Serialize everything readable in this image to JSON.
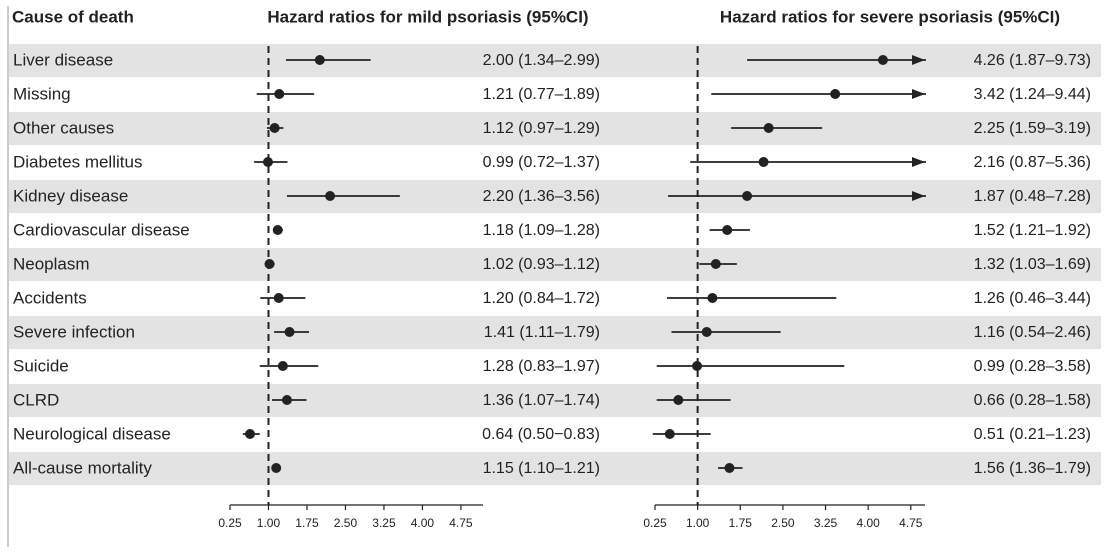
{
  "chart_data": {
    "type": "forest",
    "category_header": "Cause of death",
    "categories": [
      "Liver disease",
      "Missing",
      "Other causes",
      "Diabetes mellitus",
      "Kidney disease",
      "Cardiovascular disease",
      "Neoplasm",
      "Accidents",
      "Severe infection",
      "Suicide",
      "CLRD",
      "Neurological disease",
      "All-cause mortality"
    ],
    "stripe_color": "#e3e3e3",
    "color": "#222222",
    "panels": [
      {
        "title": "Hazard ratios for mild psoriasis (95%CI)",
        "values": [
          2.0,
          1.21,
          1.12,
          0.99,
          2.2,
          1.18,
          1.02,
          1.2,
          1.41,
          1.28,
          1.36,
          0.64,
          1.15
        ],
        "lower": [
          1.34,
          0.77,
          0.97,
          0.72,
          1.36,
          1.09,
          0.93,
          0.84,
          1.11,
          0.83,
          1.07,
          0.5,
          1.1
        ],
        "upper": [
          2.99,
          1.89,
          1.29,
          1.37,
          3.56,
          1.28,
          1.12,
          1.72,
          1.79,
          1.97,
          1.74,
          0.83,
          1.21
        ],
        "value_labels": [
          "2.00 (1.34–2.99)",
          "1.21 (0.77–1.89)",
          "1.12 (0.97–1.29)",
          "0.99 (0.72–1.37)",
          "2.20 (1.36–3.56)",
          "1.18 (1.09–1.28)",
          "1.02 (0.93–1.12)",
          "1.20 (0.84–1.72)",
          "1.41 (1.11–1.79)",
          "1.28 (0.83–1.97)",
          "1.36 (1.07–1.74)",
          "0.64 (0.50−0.83)",
          "1.15 (1.10–1.21)"
        ],
        "reference": 1,
        "xlim": [
          0.25,
          5.18
        ],
        "xticks": [
          0.25,
          {
            "value": 1,
            "label": "1.00"
          },
          1.75,
          {
            "value": 2.5,
            "label": "2.50"
          },
          3.25,
          {
            "value": 4,
            "label": "4.00"
          },
          4.75
        ]
      },
      {
        "title": "Hazard ratios for severe psoriasis (95%CI)",
        "values": [
          4.26,
          3.42,
          2.25,
          2.16,
          1.87,
          1.52,
          1.32,
          1.26,
          1.16,
          0.99,
          0.66,
          0.51,
          1.56
        ],
        "lower": [
          1.87,
          1.24,
          1.59,
          0.87,
          0.48,
          1.21,
          1.03,
          0.46,
          0.54,
          0.28,
          0.28,
          0.21,
          1.36
        ],
        "upper": [
          9.73,
          9.44,
          3.19,
          5.36,
          7.28,
          1.92,
          1.69,
          3.44,
          2.46,
          3.58,
          1.58,
          1.23,
          1.79
        ],
        "value_labels": [
          "4.26 (1.87–9.73)",
          "3.42 (1.24–9.44)",
          "2.25 (1.59–3.19)",
          "2.16 (0.87–5.36)",
          "1.87 (0.48–7.28)",
          "1.52 (1.21–1.92)",
          "1.32 (1.03–1.69)",
          "1.26 (0.46–3.44)",
          "1.16 (0.54–2.46)",
          "0.99 (0.28–3.58)",
          "0.66 (0.28–1.58)",
          "0.51 (0.21–1.23)",
          "1.56 (1.36–1.79)"
        ],
        "reference": 1,
        "xlim": [
          0.25,
          5.0
        ],
        "xticks": [
          0.25,
          {
            "value": 1,
            "label": "1.00"
          },
          1.75,
          {
            "value": 2.5,
            "label": "2.50"
          },
          3.25,
          {
            "value": 4,
            "label": "4.00"
          },
          4.75
        ]
      }
    ]
  }
}
